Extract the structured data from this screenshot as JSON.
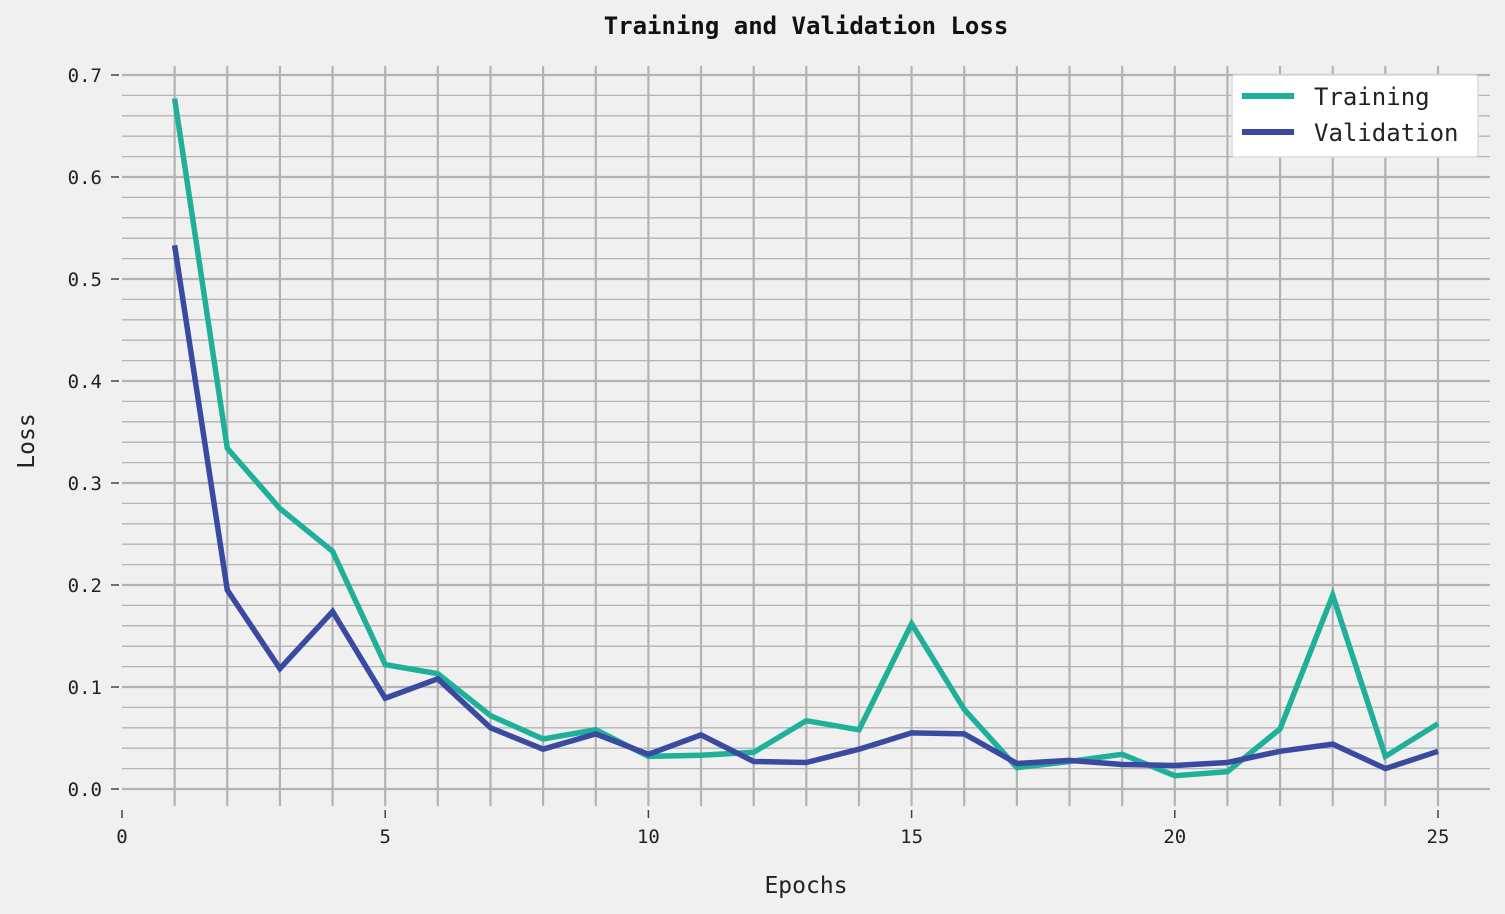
{
  "chart_data": {
    "type": "line",
    "title": "Training and Validation Loss",
    "xlabel": "Epochs",
    "ylabel": "Loss",
    "xlim": [
      0,
      25
    ],
    "ylim": [
      0.0,
      0.7
    ],
    "x_ticks": [
      0,
      5,
      10,
      15,
      20,
      25
    ],
    "x_tick_labels": [
      "0",
      "5",
      "10",
      "15",
      "20",
      "25"
    ],
    "y_ticks": [
      0.0,
      0.1,
      0.2,
      0.3,
      0.4,
      0.5,
      0.6,
      0.7
    ],
    "y_tick_labels": [
      "0.0",
      "0.1",
      "0.2",
      "0.3",
      "0.4",
      "0.5",
      "0.6",
      "0.7"
    ],
    "grid": true,
    "legend_position": "top-right",
    "x": [
      1,
      2,
      3,
      4,
      5,
      6,
      7,
      8,
      9,
      10,
      11,
      12,
      13,
      14,
      15,
      16,
      17,
      18,
      19,
      20,
      21,
      22,
      23,
      24,
      25
    ],
    "series": [
      {
        "name": "Training",
        "color": "#20b09a",
        "values": [
          0.677,
          0.334,
          0.275,
          0.233,
          0.122,
          0.113,
          0.072,
          0.049,
          0.058,
          0.032,
          0.033,
          0.036,
          0.067,
          0.058,
          0.162,
          0.078,
          0.021,
          0.027,
          0.034,
          0.013,
          0.017,
          0.059,
          0.19,
          0.032,
          0.064
        ]
      },
      {
        "name": "Validation",
        "color": "#3a4aa0",
        "values": [
          0.533,
          0.195,
          0.118,
          0.174,
          0.089,
          0.108,
          0.06,
          0.039,
          0.054,
          0.034,
          0.053,
          0.027,
          0.026,
          0.039,
          0.055,
          0.054,
          0.025,
          0.028,
          0.024,
          0.023,
          0.026,
          0.037,
          0.044,
          0.02,
          0.037
        ]
      }
    ]
  }
}
